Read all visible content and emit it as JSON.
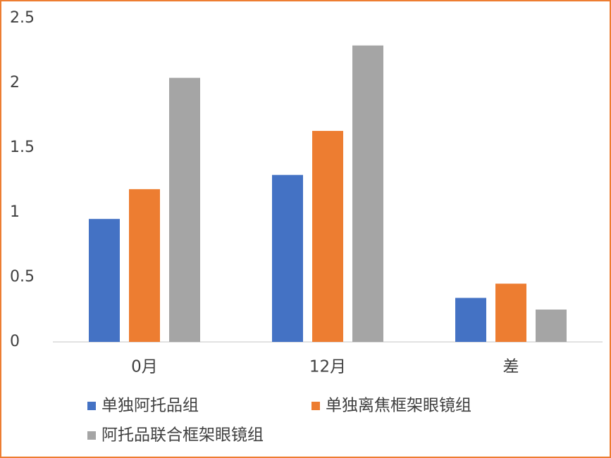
{
  "chart_data": {
    "type": "bar",
    "categories": [
      "0月",
      "12月",
      "差"
    ],
    "series": [
      {
        "name": "单独阿托品组",
        "color": "#4472c4",
        "values": [
          0.95,
          1.29,
          0.34
        ]
      },
      {
        "name": "单独离焦框架眼镜组",
        "color": "#ed7d31",
        "values": [
          1.18,
          1.63,
          0.45
        ]
      },
      {
        "name": "阿托品联合框架眼镜组",
        "color": "#a5a5a5",
        "values": [
          2.04,
          2.29,
          0.25
        ]
      }
    ],
    "ylim": [
      0,
      2.5
    ],
    "yticks": [
      0,
      0.5,
      1,
      1.5,
      2,
      2.5
    ],
    "grid": false,
    "legend": "bottom"
  }
}
